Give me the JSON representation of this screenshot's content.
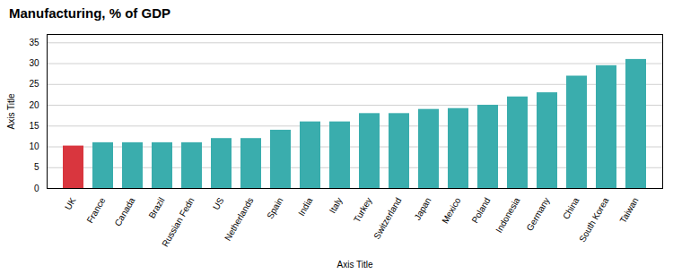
{
  "chart_data": {
    "type": "bar",
    "title": "Manufacturing, % of GDP",
    "xlabel": "Axis Title",
    "ylabel": "Axis Title",
    "categories": [
      "UK",
      "France",
      "Canada",
      "Brazil",
      "Russian Fedn",
      "US",
      "Netherlands",
      "Spain",
      "India",
      "Italy",
      "Turkey",
      "Switzerland",
      "Japan",
      "Mexico",
      "Poland",
      "Indonesia",
      "Germany",
      "China",
      "South Korea",
      "Taiwan"
    ],
    "values": [
      10.2,
      11.0,
      11.0,
      11.0,
      11.0,
      12.0,
      12.0,
      14.0,
      16.0,
      16.0,
      18.0,
      18.0,
      19.0,
      19.2,
      20.0,
      22.0,
      23.0,
      27.0,
      29.5,
      31.0
    ],
    "colors": [
      "#d9363e",
      "#3aadad",
      "#3aadad",
      "#3aadad",
      "#3aadad",
      "#3aadad",
      "#3aadad",
      "#3aadad",
      "#3aadad",
      "#3aadad",
      "#3aadad",
      "#3aadad",
      "#3aadad",
      "#3aadad",
      "#3aadad",
      "#3aadad",
      "#3aadad",
      "#3aadad",
      "#3aadad",
      "#3aadad"
    ],
    "ylim": [
      0,
      37
    ],
    "yticks": [
      0,
      5,
      10,
      15,
      20,
      25,
      30,
      35
    ],
    "grid": true
  }
}
